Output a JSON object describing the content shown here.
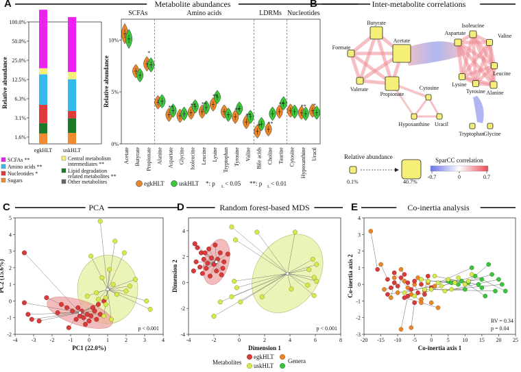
{
  "figure": {
    "panels": {
      "A": {
        "label": "A",
        "title": "Metabolite abundances"
      },
      "B": {
        "label": "B",
        "title": "Inter-metabolite correlations"
      },
      "C": {
        "label": "C",
        "title": "PCA"
      },
      "D": {
        "label": "D",
        "title": "Random forest-based MDS"
      },
      "E": {
        "label": "E",
        "title": "Co-inertia analysis"
      }
    },
    "group_labels": [
      "SCFAs",
      "Amino acids",
      "LDRMs",
      "Nucleotides"
    ],
    "stat_legend": "*: p",
    "stat_legend2": "< 0.05",
    "stat_legend3": "**: p",
    "stat_legend4": "< 0.01",
    "stat_sub": "L",
    "relative_abundance_title": "Relative abundance",
    "rel_min": "0.1%",
    "rel_max": "40.7%",
    "sparcc_title": "SparCC correlation",
    "sparcc_ticks": [
      "-0.7",
      "0",
      "0.7"
    ],
    "bottom_legend": {
      "metabolites": "Metabolites",
      "genera": "Genera",
      "egk": "egkHLT",
      "usk": "uskHLT"
    },
    "pca_p": "p < 0.001",
    "mds_p": "p < 0.001",
    "coi_rv": "RV = 0.34",
    "coi_p": "p = 0.04",
    "colors": {
      "egk": "#e8862a",
      "usk": "#3cc43c",
      "egk_dot": "#d93a3a",
      "usk_dot": "#d6e84a",
      "scfa": "#ee22ee",
      "nucl": "#e03a3a",
      "amino": "#33bbee",
      "sugar": "#f08a30",
      "central": "#f5f07a",
      "lipid": "#1a7a2a",
      "other": "#666666"
    }
  },
  "chart_data": [
    {
      "type": "bar",
      "name": "stacked-abundance",
      "categories": [
        "egkHLT",
        "uskHLT"
      ],
      "ylabel": "Relative abundance",
      "yticks": [
        "1.6%",
        "3.1%",
        "6.3%",
        "12.5%",
        "25.0%",
        "50.0%",
        "100.0%"
      ],
      "series": [
        {
          "name": "Sugars",
          "values": [
            0.02,
            0.02
          ]
        },
        {
          "name": "Lipid degradation related metabolites **",
          "values": [
            0.015,
            0.03
          ]
        },
        {
          "name": "Nucleotides *",
          "values": [
            0.03,
            0.02
          ]
        },
        {
          "name": "Amino acids **",
          "values": [
            0.09,
            0.12
          ]
        },
        {
          "name": "Central metabolism intermediates **",
          "values": [
            0.02,
            0.05
          ]
        },
        {
          "name": "SCFAs **",
          "values": [
            0.825,
            0.76
          ]
        }
      ],
      "legend": [
        "SCFAs **",
        "Amino acids **",
        "Nucleotides *",
        "Sugars",
        "Central metabolism intermediates **",
        "Lipid degradation related metabolites **",
        "Other metabolites"
      ]
    },
    {
      "type": "scatter",
      "name": "violin-abundances",
      "ylabel": "Relative abundance",
      "yticks": [
        "0%",
        "5%",
        "10%"
      ],
      "ylim": [
        0,
        12
      ],
      "categories": [
        "Acetate",
        "Butyrate",
        "Propionate",
        "Alanine",
        "Aspartate",
        "Glycine",
        "Isoleucine",
        "Leucine",
        "Lysine",
        "Tryptophan",
        "Tyrosine",
        "Valine",
        "Bile acids",
        "Choline",
        "Taurine",
        "Cytosine",
        "Hypoxanthine",
        "Uracil"
      ],
      "egk": [
        10.6,
        7.0,
        7.7,
        4.0,
        2.8,
        2.7,
        3.0,
        3.1,
        3.8,
        3.1,
        2.6,
        2.1,
        1.2,
        1.4,
        3.1,
        3.2,
        3.0,
        3.2
      ],
      "usk": [
        10.1,
        6.6,
        7.6,
        4.1,
        3.2,
        2.9,
        3.6,
        3.5,
        4.5,
        2.8,
        3.4,
        2.6,
        1.9,
        2.9,
        3.9,
        3.1,
        2.9,
        3.0
      ],
      "sig": [
        "",
        "",
        "*",
        "",
        "**",
        "",
        "**",
        "**",
        "**",
        "",
        "**",
        "**",
        "*",
        "**",
        "**",
        "",
        "**",
        "*"
      ],
      "legend": [
        "egkHLT",
        "uskHLT"
      ]
    },
    {
      "type": "scatter",
      "name": "pca",
      "title": "PCA",
      "xlabel": "PC1 (22.0%)",
      "ylabel": "PC2 (15.6%)",
      "xlim": [
        -4,
        4
      ],
      "ylim": [
        -2,
        5
      ],
      "xticks": [
        -4,
        -3,
        -2,
        -1,
        0,
        1,
        2,
        3,
        4
      ],
      "yticks": [
        -2,
        -1,
        0,
        1,
        2,
        3,
        4,
        5
      ],
      "egk_centroid": [
        -0.5,
        -0.7
      ],
      "usk_centroid": [
        1.0,
        0.7
      ],
      "egk": [
        [
          -3.5,
          2.9
        ],
        [
          -3.3,
          -0.8
        ],
        [
          -3.1,
          -1.1
        ],
        [
          -2.7,
          -1.2
        ],
        [
          -3.5,
          -0.1
        ],
        [
          -1.7,
          -0.7
        ],
        [
          -2.3,
          0.2
        ],
        [
          -1.5,
          -0.2
        ],
        [
          -1.1,
          -1.6
        ],
        [
          -0.9,
          -0.6
        ],
        [
          -0.6,
          -0.4
        ],
        [
          -0.5,
          -0.9
        ],
        [
          -0.3,
          -1.0
        ],
        [
          -0.1,
          -0.8
        ],
        [
          0.0,
          -1.2
        ],
        [
          0.2,
          -0.4
        ],
        [
          0.3,
          -0.6
        ],
        [
          0.5,
          -0.2
        ],
        [
          -0.7,
          -1.1
        ],
        [
          -0.2,
          -1.4
        ],
        [
          0.1,
          -0.9
        ],
        [
          -1.2,
          -0.4
        ],
        [
          0.8,
          0.0
        ],
        [
          0.4,
          -1.1
        ],
        [
          -0.4,
          -0.6
        ],
        [
          0.6,
          -0.8
        ]
      ],
      "usk": [
        [
          0.6,
          4.8
        ],
        [
          1.4,
          3.6
        ],
        [
          1.9,
          2.9
        ],
        [
          0.1,
          2.7
        ],
        [
          1.1,
          1.9
        ],
        [
          0.7,
          1.4
        ],
        [
          1.3,
          1.0
        ],
        [
          2.5,
          1.3
        ],
        [
          2.2,
          0.9
        ],
        [
          2.0,
          0.6
        ],
        [
          1.5,
          0.4
        ],
        [
          0.9,
          0.2
        ],
        [
          0.4,
          0.5
        ],
        [
          0.5,
          0.1
        ],
        [
          3.1,
          0.0
        ],
        [
          3.3,
          -0.5
        ],
        [
          0.9,
          -0.2
        ],
        [
          1.2,
          -1.1
        ],
        [
          0.8,
          -0.9
        ],
        [
          -0.1,
          0.3
        ]
      ]
    },
    {
      "type": "scatter",
      "name": "mds",
      "title": "Random forest-based MDS",
      "xlabel": "Dimension 1",
      "ylabel": "Dimension 2",
      "xlim": [
        -4,
        8
      ],
      "ylim": [
        -4,
        5
      ],
      "xticks": [
        -4,
        -2,
        0,
        2,
        4,
        6,
        8
      ],
      "yticks": [
        -4,
        -2,
        0,
        2,
        4
      ],
      "egk_centroid": [
        -1.8,
        1.6
      ],
      "usk_centroid": [
        3.8,
        0.7
      ],
      "egk": [
        [
          -3.5,
          3.0
        ],
        [
          -3.3,
          2.7
        ],
        [
          -3.0,
          2.3
        ],
        [
          -3.4,
          1.6
        ],
        [
          -3.1,
          1.2
        ],
        [
          -2.8,
          1.8
        ],
        [
          -2.4,
          2.6
        ],
        [
          -2.2,
          1.9
        ],
        [
          -2.0,
          1.4
        ],
        [
          -1.7,
          1.8
        ],
        [
          -1.5,
          2.3
        ],
        [
          -1.3,
          1.1
        ],
        [
          -2.6,
          1.1
        ],
        [
          -2.9,
          0.7
        ],
        [
          -1.8,
          0.9
        ],
        [
          -1.2,
          1.6
        ],
        [
          -0.9,
          2.2
        ],
        [
          -2.3,
          0.5
        ],
        [
          -1.9,
          2.9
        ],
        [
          -3.6,
          0.9
        ],
        [
          -2.7,
          2.3
        ],
        [
          -1.4,
          0.6
        ],
        [
          -2.5,
          1.5
        ]
      ],
      "usk": [
        [
          -0.6,
          4.3
        ],
        [
          1.4,
          3.9
        ],
        [
          4.4,
          3.9
        ],
        [
          -0.3,
          3.3
        ],
        [
          -1.5,
          -1.5
        ],
        [
          -0.6,
          -1.1
        ],
        [
          5.8,
          1.8
        ],
        [
          6.1,
          1.4
        ],
        [
          5.5,
          1.0
        ],
        [
          5.9,
          0.4
        ],
        [
          5.4,
          -0.2
        ],
        [
          6.1,
          0.1
        ],
        [
          5.9,
          -1.0
        ],
        [
          4.1,
          -0.5
        ],
        [
          1.8,
          -1.1
        ],
        [
          0.1,
          -1.5
        ],
        [
          -2.0,
          -2.6
        ],
        [
          -0.4,
          0.1
        ],
        [
          -0.2,
          -0.4
        ]
      ]
    },
    {
      "type": "scatter",
      "name": "coinertia",
      "title": "Co-inertia analysis",
      "xlabel": "Co-inertia axis 1",
      "ylabel": "Co-inertia axis 2",
      "xlim": [
        -20,
        25
      ],
      "ylim": [
        -3,
        4
      ],
      "xticks": [
        -20,
        -15,
        -10,
        -5,
        0,
        5,
        10,
        15,
        20,
        25
      ],
      "yticks": [
        -3,
        -2,
        -1,
        0,
        1,
        2,
        3,
        4
      ],
      "egk_met": [
        [
          -16,
          0.9
        ],
        [
          -13,
          0.3
        ],
        [
          -12,
          -0.2
        ],
        [
          -11,
          0.1
        ],
        [
          -10,
          -0.1
        ],
        [
          -9,
          0.4
        ],
        [
          -8,
          0.6
        ],
        [
          -7,
          0.1
        ],
        [
          -6,
          -0.3
        ],
        [
          -5,
          0.2
        ],
        [
          -4,
          -0.5
        ],
        [
          -3,
          0.0
        ],
        [
          -2,
          -0.6
        ],
        [
          -1,
          0.5
        ],
        [
          0,
          -0.2
        ],
        [
          -13,
          -0.6
        ],
        [
          -8,
          -0.8
        ],
        [
          -7,
          -0.7
        ],
        [
          -5,
          -1.1
        ],
        [
          -11,
          0.7
        ]
      ],
      "usk_met": [
        [
          -8,
          -0.5
        ],
        [
          -5,
          -0.7
        ],
        [
          -3,
          0.3
        ],
        [
          -1,
          0.2
        ],
        [
          0,
          -0.3
        ],
        [
          1,
          0.5
        ],
        [
          2,
          0.1
        ],
        [
          3,
          -0.1
        ],
        [
          5,
          0.3
        ],
        [
          7,
          0.1
        ],
        [
          8,
          0.4
        ],
        [
          10,
          0.0
        ],
        [
          11,
          0.2
        ],
        [
          -2,
          -0.3
        ],
        [
          4,
          -0.4
        ],
        [
          6,
          -0.3
        ],
        [
          12,
          0.6
        ]
      ],
      "egk_gen": [
        [
          -18,
          3.2
        ],
        [
          -15,
          1.2
        ],
        [
          -14,
          -0.3
        ],
        [
          -12,
          -0.8
        ],
        [
          -11,
          0.4
        ],
        [
          -10,
          -0.5
        ],
        [
          -9,
          0.9
        ],
        [
          -8,
          0.2
        ],
        [
          -7,
          -0.2
        ],
        [
          -6,
          -0.6
        ],
        [
          -5,
          0.0
        ],
        [
          -4,
          0.4
        ],
        [
          -3,
          -0.9
        ],
        [
          -2,
          -0.4
        ],
        [
          -1,
          0.1
        ],
        [
          1,
          -0.1
        ],
        [
          2,
          -1.4
        ],
        [
          -9,
          -2.7
        ],
        [
          -6,
          -2.6
        ],
        [
          -3,
          -1.1
        ],
        [
          0,
          -1.1
        ]
      ],
      "usk_gen": [
        [
          5,
          0.2
        ],
        [
          6,
          0.1
        ],
        [
          8,
          0.0
        ],
        [
          9,
          0.2
        ],
        [
          10,
          -0.3
        ],
        [
          11,
          0.1
        ],
        [
          12,
          1.0
        ],
        [
          13,
          0.5
        ],
        [
          14,
          0.0
        ],
        [
          15,
          0.3
        ],
        [
          16,
          -0.7
        ],
        [
          17,
          1.2
        ],
        [
          18,
          0.6
        ],
        [
          19,
          -0.4
        ],
        [
          20,
          0.3
        ],
        [
          21,
          0.0
        ],
        [
          22,
          -0.4
        ],
        [
          15,
          -0.2
        ]
      ]
    }
  ],
  "network": {
    "left": [
      "Butyrate",
      "Acetate",
      "Formate",
      "Valerate",
      "Propionate"
    ],
    "right": [
      "Isoleucine",
      "Aspartate",
      "Valine",
      "Leucine",
      "Lysine",
      "Tyrosine",
      "Alanine"
    ],
    "middle": [
      "Cytosine",
      "Hypoxanthine",
      "Uracil"
    ],
    "bottom": [
      "Tryptophan",
      "Glycine"
    ]
  }
}
